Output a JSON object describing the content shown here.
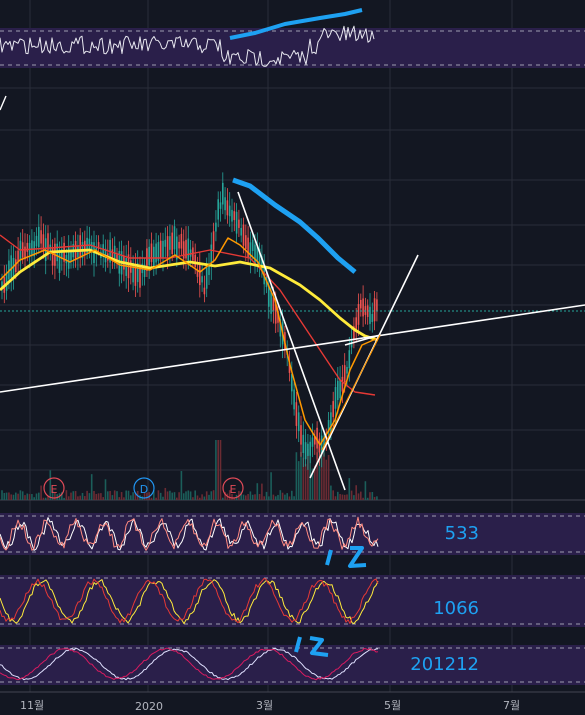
{
  "chart_data": {
    "type": "line",
    "x_ticks": [
      "11월",
      "2020",
      "3월",
      "5월",
      "7월"
    ],
    "event_markers": [
      {
        "label": "E",
        "color": "#e04a57"
      },
      {
        "label": "D",
        "color": "#2196f3"
      },
      {
        "label": "E",
        "color": "#e04a57"
      }
    ],
    "indicator_labels": [
      "533",
      "1066",
      "201212"
    ],
    "annotations": [
      "12",
      "12"
    ],
    "colors": {
      "background": "#131722",
      "panel": "#2a1f4a",
      "ma_yellow": "#ffeb3b",
      "ma_orange": "#ff9800",
      "ma_red": "#e53935",
      "candle_up": "#26a69a",
      "candle_down": "#ef5350",
      "annotation_blue": "#1ea1f2",
      "trendline": "#ffffff"
    },
    "grid": true
  }
}
